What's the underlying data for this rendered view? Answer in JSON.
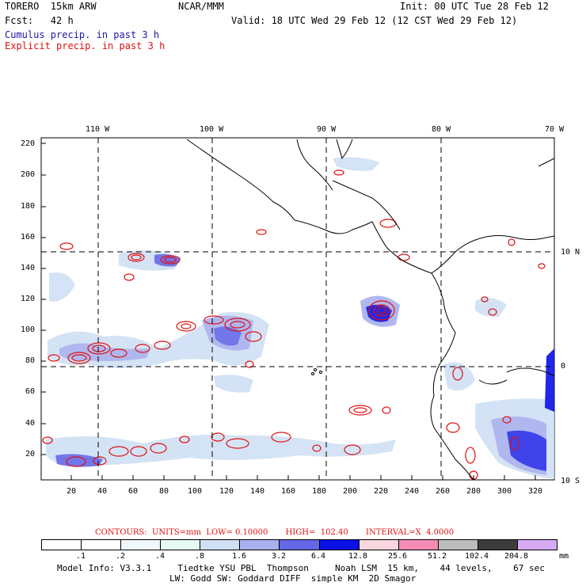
{
  "header": {
    "model": "TORERO  15km ARW",
    "org": "NCAR/MMM",
    "init": "Init: 00 UTC Tue 28 Feb 12",
    "fcst": "Fcst:   42 h",
    "valid": "Valid: 18 UTC Wed 29 Feb 12 (12 CST Wed 29 Feb 12)"
  },
  "legend_lines": {
    "cumulus": "Cumulus precip. in past 3 h",
    "explicit": "Explicit precip. in past 3 h"
  },
  "colors": {
    "cumulus_text": "#1a1aa8",
    "explicit_text": "#e01010"
  },
  "map": {
    "top_lon_labels": [
      "110 W",
      "100 W",
      "90 W",
      "80 W",
      "70 W"
    ],
    "left_y_ticks": [
      "220",
      "200",
      "180",
      "160",
      "140",
      "120",
      "100",
      "80",
      "60",
      "40",
      "20"
    ],
    "bottom_x_ticks": [
      "20",
      "40",
      "60",
      "80",
      "100",
      "120",
      "140",
      "160",
      "180",
      "200",
      "220",
      "240",
      "260",
      "280",
      "300",
      "320"
    ],
    "right_lat_labels": [
      "10 N",
      "0",
      "10 S"
    ]
  },
  "contours_line": "CONTOURS:  UNITS=mm  LOW= 0.10000       HIGH=  102.40       INTERVAL=X  4.0000",
  "colorbar": {
    "labels": [
      ".1",
      ".2",
      ".4",
      ".8",
      "1.6",
      "3.2",
      "6.4",
      "12.8",
      "25.6",
      "51.2",
      "102.4",
      "204.8"
    ],
    "unit": "mm",
    "colors": [
      "#ffffff",
      "#ffffff",
      "#f0f8ff",
      "#e6fbf6",
      "#cfe0f4",
      "#a8b0ee",
      "#6468e6",
      "#0a10e6",
      "#f7d6de",
      "#f58cb6",
      "#bcbcbc",
      "#3c3c3c",
      "#d7aaf5"
    ]
  },
  "footer": {
    "line1": "Model Info: V3.3.1     Tiedtke YSU PBL  Thompson     Noah LSM  15 km,    44 levels,    67 sec",
    "line2": "LW: Godd SW: Goddard DIFF  simple KM  2D Smagor"
  }
}
